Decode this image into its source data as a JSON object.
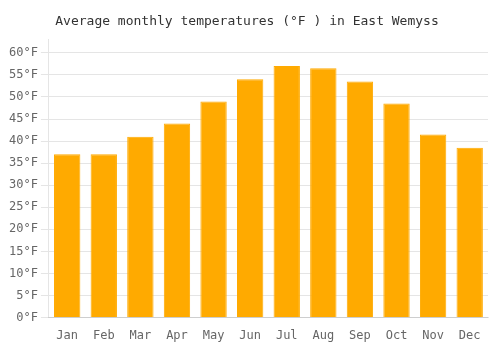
{
  "chart_data": {
    "type": "bar",
    "title": "Average monthly temperatures (°F ) in East Wemyss",
    "categories": [
      "Jan",
      "Feb",
      "Mar",
      "Apr",
      "May",
      "Jun",
      "Jul",
      "Aug",
      "Sep",
      "Oct",
      "Nov",
      "Dec"
    ],
    "values": [
      37,
      37,
      41,
      44,
      49,
      54,
      57,
      56.5,
      53.5,
      48.5,
      41.5,
      38.5
    ],
    "color": "#FFAA00",
    "ylim": [
      0,
      63
    ],
    "yticks": [
      {
        "value": 0,
        "label": "0°F"
      },
      {
        "value": 5,
        "label": "5°F"
      },
      {
        "value": 10,
        "label": "10°F"
      },
      {
        "value": 15,
        "label": "15°F"
      },
      {
        "value": 20,
        "label": "20°F"
      },
      {
        "value": 25,
        "label": "25°F"
      },
      {
        "value": 30,
        "label": "30°F"
      },
      {
        "value": 35,
        "label": "35°F"
      },
      {
        "value": 40,
        "label": "40°F"
      },
      {
        "value": 45,
        "label": "45°F"
      },
      {
        "value": 50,
        "label": "50°F"
      },
      {
        "value": 55,
        "label": "55°F"
      },
      {
        "value": 60,
        "label": "60°F"
      }
    ],
    "grid": true
  }
}
